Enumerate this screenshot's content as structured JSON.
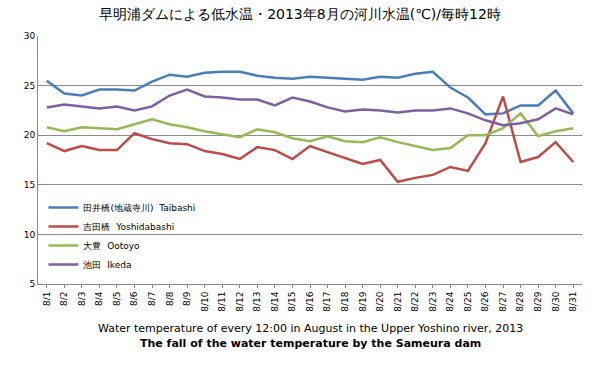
{
  "chart_data": {
    "type": "line",
    "title": "早明浦ダムによる低水温・2013年8月の河川水温(℃)/毎時12時",
    "x_label": "Water temperature of every 12:00 in August in the Upper Yoshino river, 2013",
    "annotations": [
      "The fall of the water temperature by the Sameura dam"
    ],
    "categories": [
      "8/1",
      "8/2",
      "8/3",
      "8/4",
      "8/5",
      "8/6",
      "8/7",
      "8/8",
      "8/9",
      "8/10",
      "8/11",
      "8/12",
      "8/13",
      "8/14",
      "8/15",
      "8/16",
      "8/17",
      "8/18",
      "8/19",
      "8/20",
      "8/21",
      "8/22",
      "8/23",
      "8/24",
      "8/25",
      "8/26",
      "8/27",
      "8/28",
      "8/29",
      "8/30",
      "8/31"
    ],
    "series": [
      {
        "name": "田井橋(地蔵寺川)  Taibashi",
        "color": "#4a7ebb",
        "values": [
          25.5,
          24.2,
          24.0,
          24.6,
          24.6,
          24.5,
          25.4,
          26.1,
          25.9,
          26.3,
          26.4,
          26.4,
          26.0,
          25.8,
          25.7,
          25.9,
          25.8,
          25.7,
          25.6,
          25.9,
          25.8,
          26.2,
          26.4,
          24.8,
          23.8,
          22.1,
          22.2,
          23.0,
          23.0,
          24.5,
          22.2
        ]
      },
      {
        "name": "吉田橋  Yoshidabashi",
        "color": "#be4b48",
        "values": [
          19.2,
          18.4,
          18.9,
          18.5,
          18.5,
          20.2,
          19.6,
          19.2,
          19.1,
          18.4,
          18.1,
          17.6,
          18.8,
          18.5,
          17.6,
          18.9,
          18.3,
          17.7,
          17.1,
          17.5,
          15.3,
          15.7,
          16.0,
          16.8,
          16.4,
          19.2,
          23.9,
          17.3,
          17.8,
          19.3,
          17.3
        ]
      },
      {
        "name": "大豊  Ootoyo",
        "color": "#98b954",
        "values": [
          20.8,
          20.4,
          20.8,
          20.7,
          20.6,
          21.1,
          21.6,
          21.1,
          20.8,
          20.4,
          20.1,
          19.8,
          20.6,
          20.3,
          19.7,
          19.4,
          19.9,
          19.4,
          19.3,
          19.8,
          19.3,
          18.9,
          18.5,
          18.7,
          20.0,
          20.0,
          20.7,
          22.2,
          19.9,
          20.4,
          20.7
        ]
      },
      {
        "name": "池田  Ikeda",
        "color": "#7d60a0",
        "values": [
          22.8,
          23.1,
          22.9,
          22.7,
          22.9,
          22.5,
          22.9,
          24.0,
          24.6,
          23.9,
          23.8,
          23.6,
          23.6,
          23.0,
          23.8,
          23.4,
          22.8,
          22.4,
          22.6,
          22.5,
          22.3,
          22.5,
          22.5,
          22.7,
          22.2,
          21.5,
          21.0,
          21.2,
          21.6,
          22.7,
          22.1
        ]
      }
    ],
    "ylim": [
      5,
      30
    ],
    "yticks": [
      5,
      10,
      15,
      20,
      25,
      30
    ],
    "grid": true,
    "legend": "lower left"
  }
}
